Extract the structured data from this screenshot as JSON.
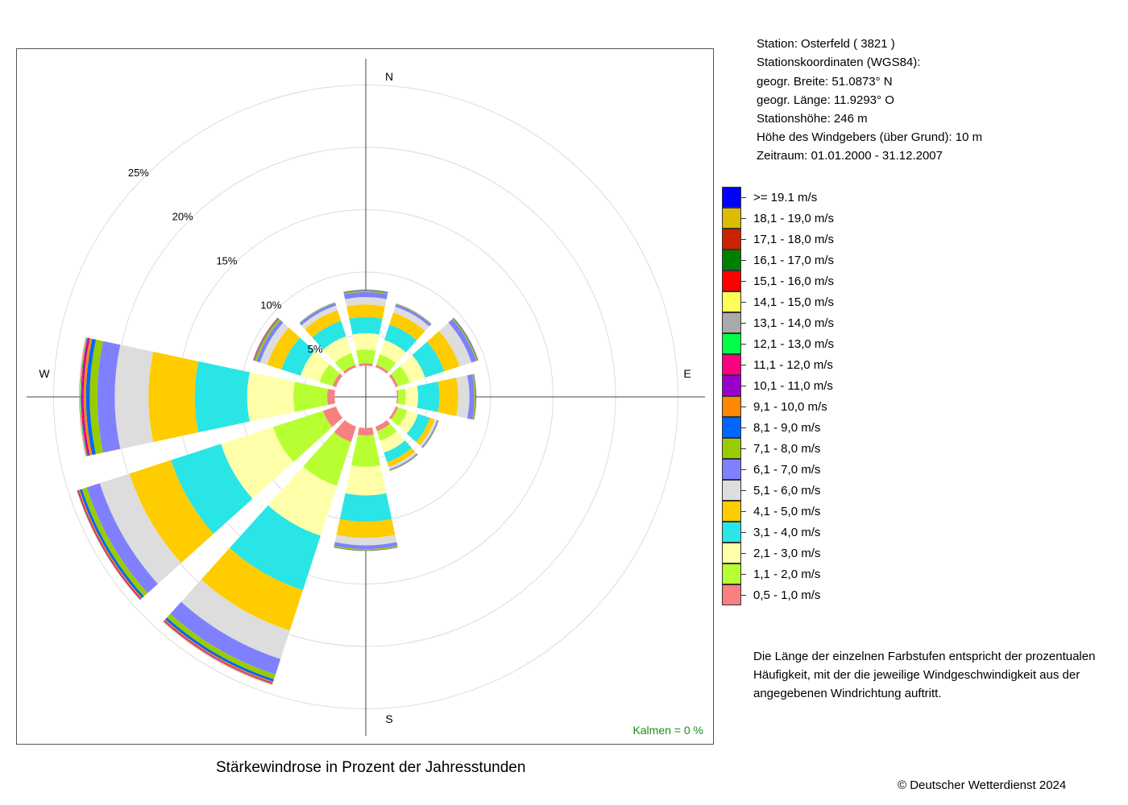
{
  "station_info": {
    "station": "Station:  Osterfeld  ( 3821 )",
    "coords_label": "Stationskoordinaten (WGS84):",
    "lat": "geogr. Breite: 51.0873° N",
    "lon": "geogr. Länge: 11.9293° O",
    "elevation": "Stationshöhe: 246 m",
    "sensor_height": "Höhe des Windgebers (über Grund): 10 m",
    "period": "Zeitraum: 01.01.2000 - 31.12.2007"
  },
  "note": [
    "Die Länge der einzelnen Farbstufen entspricht der prozentualen",
    "Häufigkeit, mit der die jeweilige Windgeschwindigkeit aus der",
    "angegebenen Windrichtung auftritt."
  ],
  "subtitle": "Stärkewindrose in Prozent der Jahresstunden",
  "copyright": "© Deutscher Wetterdienst  2024",
  "calm": "Kalmen  =  0 %",
  "chart_data": {
    "type": "wind_rose",
    "title": "Stärkewindrose in Prozent der Jahresstunden",
    "unit": "%",
    "rlim": [
      0,
      25
    ],
    "inner_hole_percent": 2.5,
    "radial_ticks": [
      "5%",
      "10%",
      "15%",
      "20%",
      "25%"
    ],
    "radial_tick_values": [
      5,
      10,
      15,
      20,
      25
    ],
    "compass_labels": [
      "N",
      "E",
      "S",
      "W"
    ],
    "directions": [
      0,
      30,
      60,
      90,
      120,
      150,
      180,
      210,
      240,
      270,
      300,
      330
    ],
    "speed_classes": [
      {
        "label": "0,5 - 1,0 m/s",
        "color": "#f88080"
      },
      {
        "label": "1,1 - 2,0 m/s",
        "color": "#b7ff33"
      },
      {
        "label": "2,1 - 3,0 m/s",
        "color": "#ffffaa"
      },
      {
        "label": "3,1 - 4,0 m/s",
        "color": "#2ae5e5"
      },
      {
        "label": "4,1 - 5,0 m/s",
        "color": "#ffcc00"
      },
      {
        "label": "5,1 - 6,0 m/s",
        "color": "#dddddd"
      },
      {
        "label": "6,1 - 7,0 m/s",
        "color": "#8080ff"
      },
      {
        "label": "7,1 - 8,0 m/s",
        "color": "#99cc00"
      },
      {
        "label": "8,1 - 9,0 m/s",
        "color": "#0066ff"
      },
      {
        "label": "9,1 - 10,0 m/s",
        "color": "#ff8800"
      },
      {
        "label": "10,1 - 11,0 m/s",
        "color": "#9900cc"
      },
      {
        "label": "11,1 - 12,0 m/s",
        "color": "#ff0080"
      },
      {
        "label": "12,1 - 13,0 m/s",
        "color": "#00ff44"
      },
      {
        "label": "13,1 - 14,0 m/s",
        "color": "#aaaaaa"
      },
      {
        "label": "14,1 - 15,0 m/s",
        "color": "#ffff55"
      },
      {
        "label": "15,1 - 16,0 m/s",
        "color": "#ff0000"
      },
      {
        "label": "16,1 - 17,0 m/s",
        "color": "#008000"
      },
      {
        "label": "17,1 - 18,0 m/s",
        "color": "#cc2200"
      },
      {
        "label": "18,1 - 19,0 m/s",
        "color": "#ddbb00"
      },
      {
        "label": ">= 19.1 m/s",
        "color": "#0000ff"
      }
    ],
    "series": [
      {
        "direction": 0,
        "values": [
          0.2,
          1.1,
          1.3,
          1.3,
          1.0,
          0.6,
          0.4,
          0.1,
          0.05,
          0.02,
          0.01,
          0.01,
          0.01,
          0.01
        ]
      },
      {
        "direction": 30,
        "values": [
          0.2,
          0.9,
          1.2,
          1.3,
          1.0,
          0.5,
          0.2,
          0.05,
          0.02,
          0.01
        ]
      },
      {
        "direction": 60,
        "values": [
          0.2,
          1.0,
          1.3,
          1.6,
          1.3,
          1.0,
          0.4,
          0.1,
          0.05,
          0.02,
          0.01
        ]
      },
      {
        "direction": 90,
        "values": [
          0.1,
          0.6,
          1.0,
          1.7,
          1.5,
          0.9,
          0.4,
          0.1,
          0.04,
          0.02
        ]
      },
      {
        "direction": 120,
        "values": [
          0.2,
          0.8,
          0.9,
          1.0,
          0.4,
          0.2,
          0.1,
          0.05
        ]
      },
      {
        "direction": 150,
        "values": [
          0.4,
          0.8,
          1.0,
          0.8,
          0.4,
          0.2,
          0.1,
          0.05
        ]
      },
      {
        "direction": 180,
        "values": [
          0.6,
          2.5,
          2.3,
          2.1,
          1.3,
          0.6,
          0.3,
          0.1,
          0.03,
          0.02
        ]
      },
      {
        "direction": 210,
        "values": [
          1.3,
          3.7,
          4.2,
          4.6,
          3.4,
          2.4,
          1.3,
          0.4,
          0.2,
          0.1,
          0.05,
          0.05,
          0.02,
          0.02,
          0.02,
          0.02
        ]
      },
      {
        "direction": 240,
        "values": [
          1.1,
          4.2,
          4.4,
          4.2,
          3.5,
          2.5,
          1.1,
          0.4,
          0.2,
          0.1,
          0.05,
          0.05,
          0.02,
          0.02,
          0.02
        ]
      },
      {
        "direction": 270,
        "values": [
          0.6,
          2.7,
          3.7,
          4.2,
          3.7,
          2.7,
          1.4,
          0.6,
          0.3,
          0.2,
          0.1,
          0.1,
          0.05,
          0.05,
          0.02,
          0.02
        ]
      },
      {
        "direction": 300,
        "values": [
          0.3,
          1.1,
          1.6,
          1.6,
          1.2,
          0.6,
          0.3,
          0.15,
          0.05,
          0.05,
          0.03,
          0.02
        ]
      },
      {
        "direction": 330,
        "values": [
          0.2,
          1.0,
          1.4,
          1.3,
          0.9,
          0.4,
          0.2,
          0.05,
          0.02
        ]
      }
    ]
  }
}
